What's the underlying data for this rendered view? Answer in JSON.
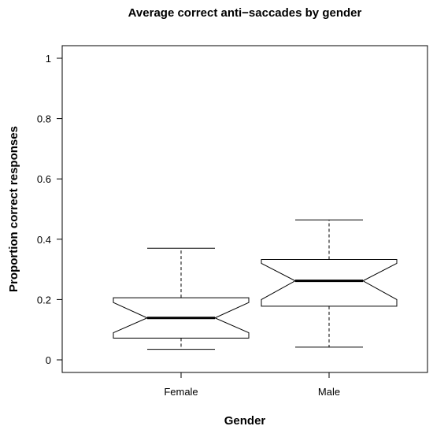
{
  "chart_data": {
    "type": "boxplot",
    "notched": true,
    "title": "Average correct anti−saccades by gender",
    "xlabel": "Gender",
    "ylabel": "Proportion correct responses",
    "ylim": [
      0,
      1
    ],
    "yticks": [
      0,
      0.2,
      0.4,
      0.6,
      0.8,
      1
    ],
    "ytick_labels": [
      "0",
      "0.2",
      "0.4",
      "0.6",
      "0.8",
      "1"
    ],
    "categories": [
      "Female",
      "Male"
    ],
    "boxes": [
      {
        "category": "Female",
        "whisker_low": 0.035,
        "q1": 0.072,
        "median": 0.139,
        "q3": 0.206,
        "whisker_high": 0.37,
        "notch_low": 0.09,
        "notch_high": 0.19
      },
      {
        "category": "Male",
        "whisker_low": 0.042,
        "q1": 0.178,
        "median": 0.262,
        "q3": 0.333,
        "whisker_high": 0.464,
        "notch_low": 0.2,
        "notch_high": 0.32
      }
    ]
  }
}
